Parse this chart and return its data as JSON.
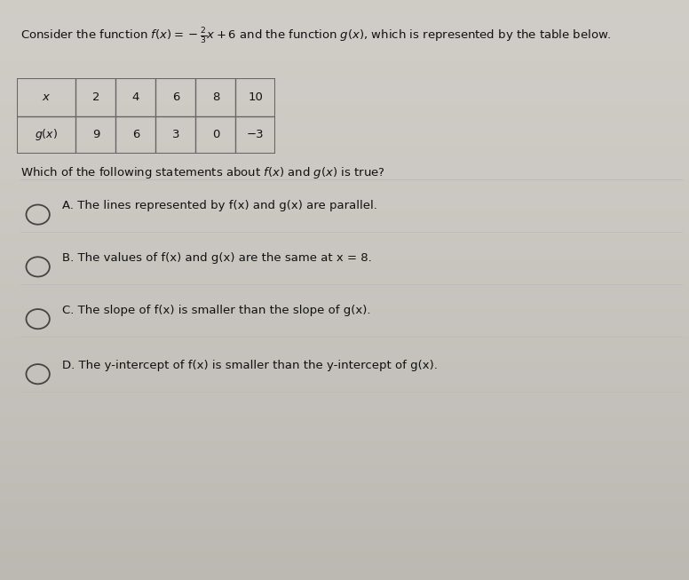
{
  "background_color_top": "#c8c0b8",
  "background_color_bottom": "#d8d2cc",
  "title_line1": "Consider the function ",
  "title_formula": "f(x) = -₂/₃x + 6",
  "title_line2": " and the function g(x), which is represented by the table below.",
  "table_x_values": [
    "2",
    "4",
    "6",
    "8",
    "10"
  ],
  "table_gx_values": [
    "9",
    "6",
    "3",
    "0",
    "-3"
  ],
  "question": "Which of the following statements about f(x) and g(x) is true?",
  "option_A": "A. The lines represented by f(x) and g(x) are parallel.",
  "option_B": "B. The values of f(x) and g(x) are the same at x = 8.",
  "option_C": "C. The slope of f(x) is smaller than the slope of g(x).",
  "option_D": "D. The y-intercept of f(x) is smaller than the y-intercept of g(x).",
  "text_color": "#111111",
  "table_border_color": "#666666",
  "circle_color": "#444444",
  "divider_color": "#bbbbbb",
  "bg_main": "#ccc8c2"
}
